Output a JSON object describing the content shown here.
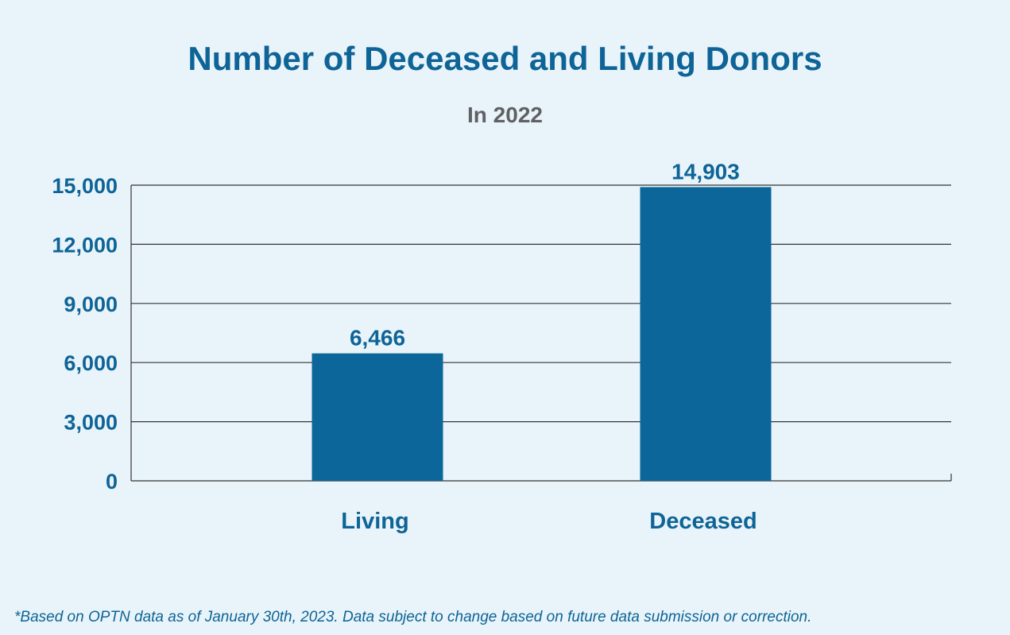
{
  "colors": {
    "background": "#e9f4fa",
    "accent": "#0e6496",
    "bar": "#0c6699",
    "subtitle": "#5f6163",
    "gridline": "#333333"
  },
  "chart_data": {
    "type": "bar",
    "title": "Number of Deceased and Living Donors",
    "subtitle": "In 2022",
    "categories": [
      "Living",
      "Deceased"
    ],
    "values": [
      6466,
      14903
    ],
    "value_labels": [
      "6,466",
      "14,903"
    ],
    "ytick_values": [
      0,
      3000,
      6000,
      9000,
      12000,
      15000
    ],
    "ytick_labels": [
      "0",
      "3,000",
      "6,000",
      "9,000",
      "12,000",
      "15,000"
    ],
    "ylim": [
      0,
      15000
    ],
    "grid": true,
    "legend": "none",
    "footnote": "*Based on OPTN data as of January 30th, 2023. Data subject to change based on future data submission or correction."
  }
}
